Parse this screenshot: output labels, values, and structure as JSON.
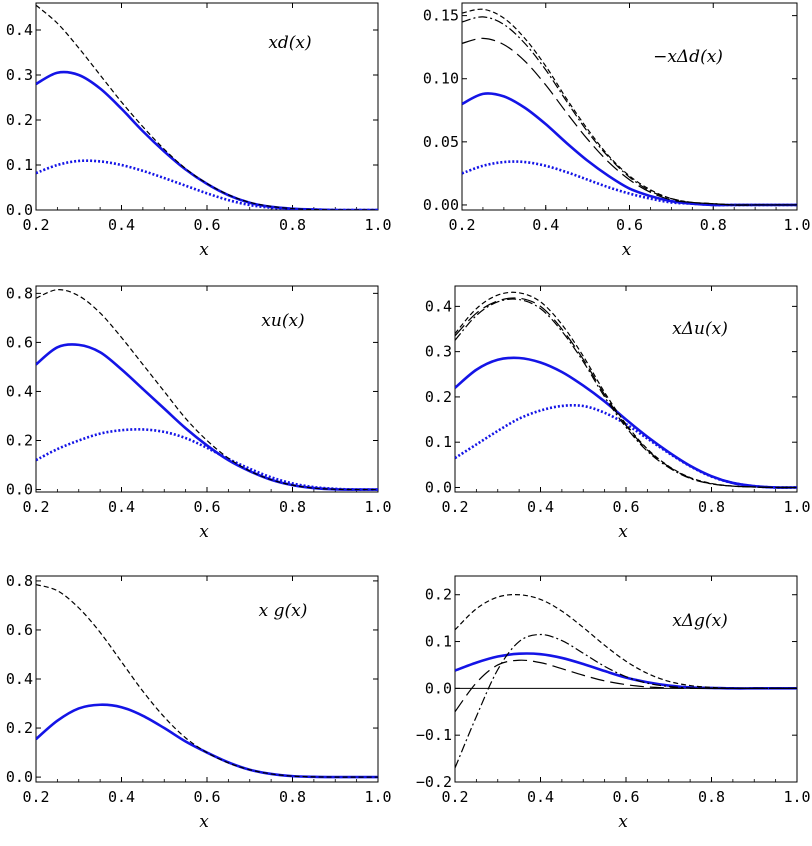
{
  "figure": {
    "colors": {
      "model": "#1414e6",
      "axis": "#000000",
      "reference": "#000000"
    }
  },
  "chart_data": [
    {
      "type": "line",
      "title": "xd(x)",
      "xlabel": "x",
      "xlim": [
        0.2,
        1.0
      ],
      "ylim": [
        0,
        0.46
      ],
      "xticks": [
        "0.2",
        "0.4",
        "0.6",
        "0.8",
        "1.0"
      ],
      "yticks": [
        {
          "v": 0.0,
          "label": "0.0"
        },
        {
          "v": 0.1,
          "label": "0.1"
        },
        {
          "v": 0.2,
          "label": "0.2"
        },
        {
          "v": 0.3,
          "label": "0.3"
        },
        {
          "v": 0.4,
          "label": "0.4"
        }
      ],
      "zero_line": false,
      "x": [
        0.2,
        0.25,
        0.3,
        0.35,
        0.4,
        0.45,
        0.5,
        0.55,
        0.6,
        0.65,
        0.7,
        0.75,
        0.8,
        0.85,
        0.9,
        0.95,
        1.0
      ],
      "series": [
        {
          "name": "model",
          "style": "solid",
          "values": [
            0.28,
            0.305,
            0.3,
            0.27,
            0.225,
            0.175,
            0.13,
            0.09,
            0.058,
            0.033,
            0.016,
            0.007,
            0.003,
            0.001,
            0.0,
            0.0,
            0.0
          ]
        },
        {
          "name": "model dotted",
          "style": "dotted",
          "values": [
            0.082,
            0.1,
            0.109,
            0.108,
            0.1,
            0.087,
            0.071,
            0.054,
            0.037,
            0.022,
            0.011,
            0.005,
            0.002,
            0.001,
            0.0,
            0.0,
            0.0
          ]
        },
        {
          "name": "reference 1",
          "style": "dash-fine",
          "values": [
            0.455,
            0.415,
            0.36,
            0.3,
            0.24,
            0.185,
            0.135,
            0.092,
            0.059,
            0.034,
            0.017,
            0.008,
            0.003,
            0.001,
            0.0,
            0.0,
            0.0
          ]
        }
      ]
    },
    {
      "type": "line",
      "title": "−xΔd(x)",
      "xlabel": "x",
      "xlim": [
        0.2,
        1.0
      ],
      "ylim": [
        -0.004,
        0.16
      ],
      "xticks": [
        "0.2",
        "0.4",
        "0.6",
        "0.8",
        "1.0"
      ],
      "yticks": [
        {
          "v": 0.0,
          "label": "0.00"
        },
        {
          "v": 0.05,
          "label": "0.05"
        },
        {
          "v": 0.1,
          "label": "0.10"
        },
        {
          "v": 0.15,
          "label": "0.15"
        }
      ],
      "zero_line": false,
      "x": [
        0.2,
        0.25,
        0.3,
        0.35,
        0.4,
        0.45,
        0.5,
        0.55,
        0.6,
        0.65,
        0.7,
        0.75,
        0.8,
        0.85,
        0.9,
        0.95,
        1.0
      ],
      "series": [
        {
          "name": "model",
          "style": "solid",
          "values": [
            0.08,
            0.088,
            0.086,
            0.077,
            0.064,
            0.049,
            0.035,
            0.023,
            0.013,
            0.007,
            0.003,
            0.001,
            0.0,
            0.0,
            0.0,
            0.0,
            0.0
          ]
        },
        {
          "name": "model dotted",
          "style": "dotted",
          "values": [
            0.025,
            0.031,
            0.034,
            0.034,
            0.031,
            0.026,
            0.02,
            0.014,
            0.009,
            0.005,
            0.002,
            0.001,
            0.0,
            0.0,
            0.0,
            0.0,
            0.0
          ]
        },
        {
          "name": "reference 1",
          "style": "dash-fine",
          "values": [
            0.152,
            0.155,
            0.148,
            0.132,
            0.11,
            0.084,
            0.06,
            0.039,
            0.023,
            0.012,
            0.005,
            0.002,
            0.001,
            0.0,
            0.0,
            0.0,
            0.0
          ]
        },
        {
          "name": "reference 2",
          "style": "dash-dot",
          "values": [
            0.145,
            0.149,
            0.143,
            0.128,
            0.107,
            0.082,
            0.058,
            0.038,
            0.022,
            0.011,
            0.005,
            0.002,
            0.001,
            0.0,
            0.0,
            0.0,
            0.0
          ]
        },
        {
          "name": "reference 3",
          "style": "dash-long",
          "values": [
            0.128,
            0.132,
            0.127,
            0.114,
            0.095,
            0.073,
            0.052,
            0.034,
            0.02,
            0.01,
            0.004,
            0.002,
            0.001,
            0.0,
            0.0,
            0.0,
            0.0
          ]
        }
      ]
    },
    {
      "type": "line",
      "title": "xu(x)",
      "xlabel": "x",
      "xlim": [
        0.2,
        1.0
      ],
      "ylim": [
        -0.01,
        0.83
      ],
      "xticks": [
        "0.2",
        "0.4",
        "0.6",
        "0.8",
        "1.0"
      ],
      "yticks": [
        {
          "v": 0.0,
          "label": "0.0"
        },
        {
          "v": 0.2,
          "label": "0.2"
        },
        {
          "v": 0.4,
          "label": "0.4"
        },
        {
          "v": 0.6,
          "label": "0.6"
        },
        {
          "v": 0.8,
          "label": "0.8"
        }
      ],
      "zero_line": false,
      "x": [
        0.2,
        0.25,
        0.3,
        0.35,
        0.4,
        0.45,
        0.5,
        0.55,
        0.6,
        0.65,
        0.7,
        0.75,
        0.8,
        0.85,
        0.9,
        0.95,
        1.0
      ],
      "series": [
        {
          "name": "model",
          "style": "solid",
          "values": [
            0.51,
            0.58,
            0.59,
            0.56,
            0.49,
            0.41,
            0.33,
            0.25,
            0.18,
            0.12,
            0.075,
            0.04,
            0.018,
            0.006,
            0.001,
            0.0,
            0.0
          ]
        },
        {
          "name": "model dotted",
          "style": "dotted",
          "values": [
            0.12,
            0.165,
            0.2,
            0.228,
            0.242,
            0.245,
            0.235,
            0.21,
            0.17,
            0.125,
            0.085,
            0.05,
            0.025,
            0.01,
            0.003,
            0.0,
            0.0
          ]
        },
        {
          "name": "reference 1",
          "style": "dash-fine",
          "values": [
            0.78,
            0.815,
            0.79,
            0.72,
            0.62,
            0.51,
            0.4,
            0.29,
            0.2,
            0.128,
            0.076,
            0.04,
            0.018,
            0.006,
            0.001,
            0.0,
            0.0
          ]
        }
      ]
    },
    {
      "type": "line",
      "title": "xΔu(x)",
      "xlabel": "x",
      "xlim": [
        0.2,
        1.0
      ],
      "ylim": [
        -0.01,
        0.445
      ],
      "xticks": [
        "0.2",
        "0.4",
        "0.6",
        "0.8",
        "1.0"
      ],
      "yticks": [
        {
          "v": 0.0,
          "label": "0.0"
        },
        {
          "v": 0.1,
          "label": "0.1"
        },
        {
          "v": 0.2,
          "label": "0.2"
        },
        {
          "v": 0.3,
          "label": "0.3"
        },
        {
          "v": 0.4,
          "label": "0.4"
        }
      ],
      "zero_line": false,
      "x": [
        0.2,
        0.25,
        0.3,
        0.35,
        0.4,
        0.45,
        0.5,
        0.55,
        0.6,
        0.65,
        0.7,
        0.75,
        0.8,
        0.85,
        0.9,
        0.95,
        1.0
      ],
      "series": [
        {
          "name": "model",
          "style": "solid",
          "values": [
            0.22,
            0.26,
            0.282,
            0.286,
            0.276,
            0.255,
            0.225,
            0.19,
            0.15,
            0.112,
            0.078,
            0.048,
            0.025,
            0.01,
            0.003,
            0.0,
            0.0
          ]
        },
        {
          "name": "model dotted",
          "style": "dotted",
          "values": [
            0.065,
            0.095,
            0.125,
            0.152,
            0.17,
            0.18,
            0.18,
            0.165,
            0.14,
            0.108,
            0.076,
            0.047,
            0.024,
            0.01,
            0.003,
            0.0,
            0.0
          ]
        },
        {
          "name": "reference 1",
          "style": "dash-fine",
          "values": [
            0.34,
            0.395,
            0.425,
            0.43,
            0.41,
            0.36,
            0.29,
            0.21,
            0.14,
            0.085,
            0.047,
            0.022,
            0.009,
            0.003,
            0.001,
            0.0,
            0.0
          ]
        },
        {
          "name": "reference 2",
          "style": "dash-dot",
          "values": [
            0.325,
            0.38,
            0.41,
            0.415,
            0.395,
            0.345,
            0.278,
            0.2,
            0.133,
            0.08,
            0.044,
            0.02,
            0.008,
            0.003,
            0.001,
            0.0,
            0.0
          ]
        },
        {
          "name": "reference 3",
          "style": "dash-long",
          "values": [
            0.335,
            0.385,
            0.412,
            0.418,
            0.4,
            0.35,
            0.283,
            0.205,
            0.137,
            0.083,
            0.046,
            0.021,
            0.008,
            0.003,
            0.001,
            0.0,
            0.0
          ]
        }
      ]
    },
    {
      "type": "line",
      "title": "x g(x)",
      "xlabel": "x",
      "xlim": [
        0.2,
        1.0
      ],
      "ylim": [
        -0.02,
        0.82
      ],
      "xticks": [
        "0.2",
        "0.4",
        "0.6",
        "0.8",
        "1.0"
      ],
      "yticks": [
        {
          "v": 0.0,
          "label": "0.0"
        },
        {
          "v": 0.2,
          "label": "0.2"
        },
        {
          "v": 0.4,
          "label": "0.4"
        },
        {
          "v": 0.6,
          "label": "0.6"
        },
        {
          "v": 0.8,
          "label": "0.8"
        }
      ],
      "zero_line": false,
      "x": [
        0.2,
        0.25,
        0.3,
        0.35,
        0.4,
        0.45,
        0.5,
        0.55,
        0.6,
        0.65,
        0.7,
        0.75,
        0.8,
        0.85,
        0.9,
        0.95,
        1.0
      ],
      "series": [
        {
          "name": "model",
          "style": "solid",
          "values": [
            0.155,
            0.23,
            0.28,
            0.295,
            0.285,
            0.25,
            0.2,
            0.145,
            0.1,
            0.06,
            0.03,
            0.013,
            0.004,
            0.001,
            0.0,
            0.0,
            0.0
          ]
        },
        {
          "name": "reference 1",
          "style": "dash-fine",
          "values": [
            0.785,
            0.76,
            0.69,
            0.59,
            0.47,
            0.35,
            0.245,
            0.16,
            0.1,
            0.058,
            0.03,
            0.013,
            0.004,
            0.001,
            0.0,
            0.0,
            0.0
          ]
        }
      ]
    },
    {
      "type": "line",
      "title": "xΔg(x)",
      "xlabel": "x",
      "xlim": [
        0.2,
        1.0
      ],
      "ylim": [
        -0.2,
        0.24
      ],
      "xticks": [
        "0.2",
        "0.4",
        "0.6",
        "0.8",
        "1.0"
      ],
      "yticks": [
        {
          "v": -0.2,
          "label": "−0.2"
        },
        {
          "v": -0.1,
          "label": "−0.1"
        },
        {
          "v": 0.0,
          "label": "0.0"
        },
        {
          "v": 0.1,
          "label": "0.1"
        },
        {
          "v": 0.2,
          "label": "0.2"
        }
      ],
      "zero_line": true,
      "x": [
        0.2,
        0.25,
        0.3,
        0.35,
        0.4,
        0.45,
        0.5,
        0.55,
        0.6,
        0.65,
        0.7,
        0.75,
        0.8,
        0.85,
        0.9,
        0.95,
        1.0
      ],
      "series": [
        {
          "name": "model",
          "style": "solid",
          "values": [
            0.038,
            0.055,
            0.068,
            0.074,
            0.073,
            0.065,
            0.052,
            0.037,
            0.023,
            0.013,
            0.006,
            0.002,
            0.001,
            0.0,
            0.0,
            0.0,
            0.0
          ]
        },
        {
          "name": "reference 1",
          "style": "dash-fine",
          "values": [
            0.125,
            0.17,
            0.195,
            0.2,
            0.19,
            0.165,
            0.13,
            0.092,
            0.058,
            0.032,
            0.015,
            0.006,
            0.002,
            0.0,
            0.0,
            0.0,
            0.0
          ]
        },
        {
          "name": "reference 2",
          "style": "dash-dot",
          "values": [
            -0.17,
            -0.06,
            0.04,
            0.1,
            0.115,
            0.102,
            0.075,
            0.047,
            0.025,
            0.011,
            0.004,
            0.001,
            0.0,
            0.0,
            0.0,
            0.0,
            0.0
          ]
        },
        {
          "name": "reference 3",
          "style": "dash-long",
          "values": [
            -0.05,
            0.012,
            0.05,
            0.06,
            0.055,
            0.042,
            0.028,
            0.016,
            0.008,
            0.003,
            0.001,
            0.0,
            0.0,
            0.0,
            0.0,
            0.0,
            0.0
          ]
        }
      ]
    }
  ]
}
